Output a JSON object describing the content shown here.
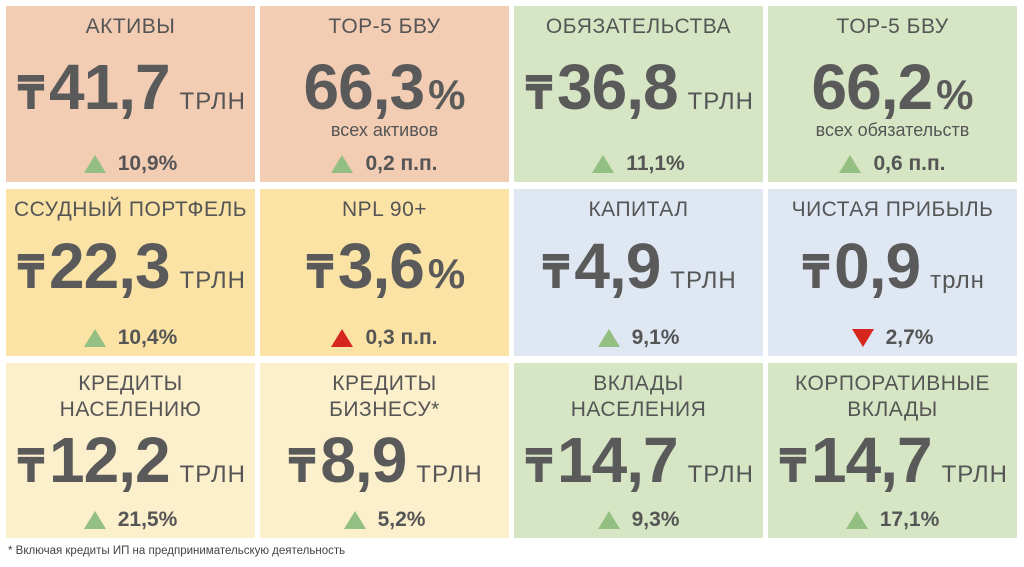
{
  "cards": [
    {
      "title": "АКТИВЫ",
      "currency": "₸",
      "value": "41,7",
      "unit": "ТРЛН",
      "sub": "",
      "change": "10,9%",
      "direction": "up",
      "color": "#f2cdb4"
    },
    {
      "title": "TOP-5 БВУ",
      "currency": "",
      "value": "66,3",
      "unit": "%",
      "sub": "всех активов",
      "change": "0,2 п.п.",
      "direction": "up",
      "color": "#f2cdb4"
    },
    {
      "title": "ОБЯЗАТЕЛЬСТВА",
      "currency": "₸",
      "value": "36,8",
      "unit": "ТРЛН",
      "sub": "",
      "change": "11,1%",
      "direction": "up",
      "color": "#d6e6c4"
    },
    {
      "title": "TOP-5 БВУ",
      "currency": "",
      "value": "66,2",
      "unit": "%",
      "sub": "всех обязательств",
      "change": "0,6 п.п.",
      "direction": "up",
      "color": "#d6e6c4"
    },
    {
      "title": "ССУДНЫЙ ПОРТФЕЛЬ",
      "currency": "₸",
      "value": "22,3",
      "unit": "ТРЛН",
      "sub": "",
      "change": "10,4%",
      "direction": "up",
      "color": "#fbe3a6"
    },
    {
      "title": "NPL 90+",
      "currency": "₸",
      "value": "3,6",
      "unit": "%",
      "sub": "",
      "change": "0,3 п.п.",
      "direction": "up-red",
      "color": "#fbe3a6"
    },
    {
      "title": "КАПИТАЛ",
      "currency": "₸",
      "value": "4,9",
      "unit": "ТРЛН",
      "sub": "",
      "change": "9,1%",
      "direction": "up",
      "color": "#dfe7f3"
    },
    {
      "title": "ЧИСТАЯ ПРИБЫЛЬ",
      "currency": "₸",
      "value": "0,9",
      "unit": "трлн",
      "sub": "",
      "change": "2,7%",
      "direction": "down-red",
      "color": "#dfe7f3"
    },
    {
      "title": "КРЕДИТЫ\nНАСЕЛЕНИЮ",
      "currency": "₸",
      "value": "12,2",
      "unit": "ТРЛН",
      "sub": "",
      "change": "21,5%",
      "direction": "up",
      "color": "#fcefcc"
    },
    {
      "title": "КРЕДИТЫ\nБИЗНЕСУ*",
      "currency": "₸",
      "value": "8,9",
      "unit": "ТРЛН",
      "sub": "",
      "change": "5,2%",
      "direction": "up",
      "color": "#fcefcc"
    },
    {
      "title": "ВКЛАДЫ\nНАСЕЛЕНИЯ",
      "currency": "₸",
      "value": "14,7",
      "unit": "ТРЛН",
      "sub": "",
      "change": "9,3%",
      "direction": "up",
      "color": "#d6e6c4"
    },
    {
      "title": "КОРПОРАТИВНЫЕ\nВКЛАДЫ",
      "currency": "₸",
      "value": "14,7",
      "unit": "ТРЛН",
      "sub": "",
      "change": "17,1%",
      "direction": "up",
      "color": "#d6e6c4"
    }
  ],
  "footnote": "* Включая кредиты ИП на предпринимательскую деятельность"
}
